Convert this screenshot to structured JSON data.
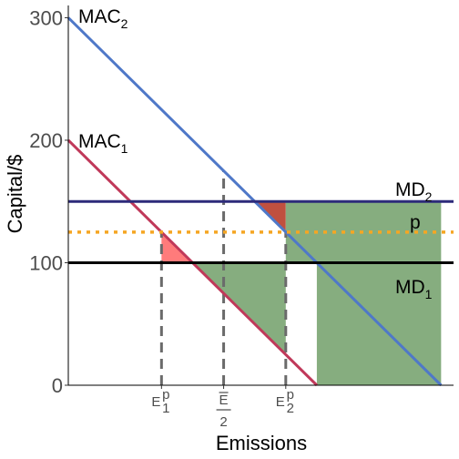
{
  "chart_data": {
    "type": "line",
    "xlabel": "Emissions",
    "ylabel": "Capital/$",
    "xlim": [
      0,
      310
    ],
    "ylim": [
      0,
      310
    ],
    "y_ticks": [
      0,
      100,
      200,
      300
    ],
    "x_ticks": [
      {
        "x": 75,
        "label": "E",
        "sup": "p",
        "sub": "1",
        "bar": false,
        "frac": false
      },
      {
        "x": 125,
        "label": "E",
        "sup": "",
        "sub": "",
        "bar": true,
        "frac": true,
        "denominator": "2"
      },
      {
        "x": 175,
        "label": "E",
        "sup": "p",
        "sub": "2",
        "bar": false,
        "frac": false
      }
    ],
    "series": [
      {
        "name": "MAC",
        "sub": "1",
        "color": "#c0395a",
        "x": [
          0,
          200
        ],
        "y": [
          200,
          0
        ]
      },
      {
        "name": "MAC",
        "sub": "2",
        "color": "#4f78c8",
        "x": [
          0,
          300
        ],
        "y": [
          300,
          0
        ]
      },
      {
        "name": "MD",
        "sub": "2",
        "color": "#2d2a7a",
        "x": [
          0,
          310
        ],
        "y": [
          150,
          150
        ]
      },
      {
        "name": "MD",
        "sub": "1",
        "color": "#000000",
        "x": [
          0,
          310
        ],
        "y": [
          100,
          100
        ]
      },
      {
        "name": "p",
        "sub": "",
        "color": "#f5a623",
        "dashed": true,
        "x": [
          0,
          310
        ],
        "y": [
          125,
          125
        ]
      }
    ],
    "vlines": [
      {
        "x": 75,
        "y_top": 125
      },
      {
        "x": 125,
        "y_top": 175
      },
      {
        "x": 175,
        "y_top": 125
      }
    ],
    "shaded_regions": [
      {
        "color": "#ff7b7b",
        "points": [
          [
            75,
            125
          ],
          [
            100,
            100
          ],
          [
            75,
            100
          ]
        ]
      },
      {
        "color": "#c0503f",
        "points": [
          [
            150,
            150
          ],
          [
            175,
            150
          ],
          [
            175,
            125
          ]
        ]
      },
      {
        "color": "#86ad7f",
        "points": [
          [
            100,
            100
          ],
          [
            175,
            100
          ],
          [
            175,
            25
          ],
          [
            125,
            75
          ]
        ]
      },
      {
        "color": "#86ad7f",
        "points": [
          [
            175,
            150
          ],
          [
            300,
            150
          ],
          [
            300,
            0
          ],
          [
            200,
            0
          ],
          [
            200,
            100
          ],
          [
            175,
            100
          ],
          [
            175,
            125
          ]
        ]
      }
    ]
  }
}
